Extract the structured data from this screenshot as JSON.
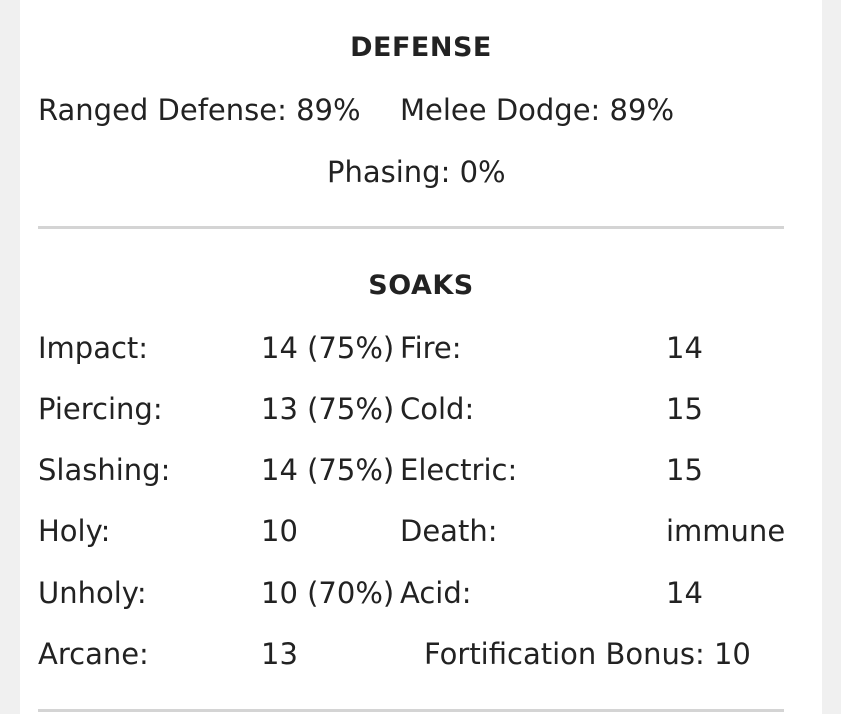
{
  "defense": {
    "title": "DEFENSE",
    "ranged_defense": "Ranged Defense: 89%",
    "melee_dodge": "Melee Dodge: 89%",
    "phasing": "Phasing: 0%"
  },
  "soaks": {
    "title": "SOAKS",
    "rows": [
      {
        "left_label": "Impact:",
        "left_value": "14 (75%)",
        "right_label": "Fire:",
        "right_value": "14"
      },
      {
        "left_label": "Piercing:",
        "left_value": "13 (75%)",
        "right_label": "Cold:",
        "right_value": "15"
      },
      {
        "left_label": "Slashing:",
        "left_value": "14 (75%)",
        "right_label": "Electric:",
        "right_value": "15"
      },
      {
        "left_label": "Holy:",
        "left_value": "10",
        "right_label": "Death:",
        "right_value": "immune"
      },
      {
        "left_label": "Unholy:",
        "left_value": "10 (70%)",
        "right_label": "Acid:",
        "right_value": "14"
      },
      {
        "left_label": "Arcane:",
        "left_value": "13"
      }
    ],
    "fortification": "Fortification Bonus: 10"
  }
}
